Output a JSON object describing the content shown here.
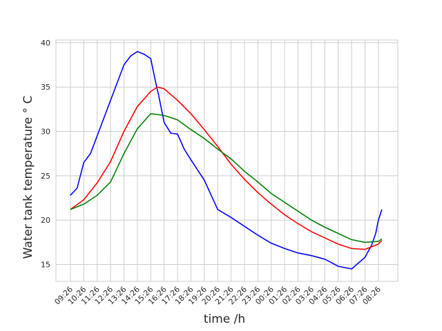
{
  "chart_data": {
    "type": "line",
    "xlabel": "time /h",
    "ylabel": "Water tank temperature  ° C",
    "xlim": [
      -1.08,
      24.45
    ],
    "ylim": [
      13.1,
      40.3
    ],
    "xticks": [
      {
        "value": 0,
        "label": "09:26"
      },
      {
        "value": 1,
        "label": "10:26"
      },
      {
        "value": 2,
        "label": "11:26"
      },
      {
        "value": 3,
        "label": "12:26"
      },
      {
        "value": 4,
        "label": "13:26"
      },
      {
        "value": 5,
        "label": "14:26"
      },
      {
        "value": 6,
        "label": "15:26"
      },
      {
        "value": 7,
        "label": "16:26"
      },
      {
        "value": 8,
        "label": "17:26"
      },
      {
        "value": 9,
        "label": "18:26"
      },
      {
        "value": 10,
        "label": "19:26"
      },
      {
        "value": 11,
        "label": "20:26"
      },
      {
        "value": 12,
        "label": "21:26"
      },
      {
        "value": 13,
        "label": "22:26"
      },
      {
        "value": 14,
        "label": "23:26"
      },
      {
        "value": 15,
        "label": "00:26"
      },
      {
        "value": 16,
        "label": "01:26"
      },
      {
        "value": 17,
        "label": "02:26"
      },
      {
        "value": 18,
        "label": "03:26"
      },
      {
        "value": 19,
        "label": "04:26"
      },
      {
        "value": 20,
        "label": "05:26"
      },
      {
        "value": 21,
        "label": "06:26"
      },
      {
        "value": 22,
        "label": "07:26"
      },
      {
        "value": 23,
        "label": "08:26"
      }
    ],
    "yticks": [
      15,
      20,
      25,
      30,
      35,
      40
    ],
    "grid": true,
    "series": [
      {
        "color": "#0000ff",
        "x": [
          0,
          0.5,
          1,
          1.5,
          2,
          3,
          4,
          4.5,
          5,
          5.5,
          6,
          6.3,
          6.6,
          7,
          7.5,
          8,
          8.5,
          9,
          10,
          11,
          12,
          13,
          14,
          15,
          16,
          17,
          18,
          19,
          20,
          21,
          22,
          22.5,
          22.8,
          23,
          23.26
        ],
        "values": [
          22.8,
          23.6,
          26.5,
          27.5,
          29.5,
          33.5,
          37.5,
          38.5,
          39.0,
          38.7,
          38.2,
          36,
          34,
          31,
          29.8,
          29.7,
          28,
          26.8,
          24.5,
          21.2,
          20.3,
          19.3,
          18.3,
          17.4,
          16.8,
          16.3,
          16.0,
          15.6,
          14.8,
          14.5,
          15.8,
          17.2,
          18.5,
          20,
          21.2
        ]
      },
      {
        "color": "#ff0000",
        "x": [
          0,
          1,
          2,
          3,
          4,
          5,
          6,
          6.5,
          7,
          8,
          9,
          10,
          11,
          12,
          13,
          14,
          15,
          16,
          17,
          18,
          19,
          20,
          21,
          22,
          23,
          23.26
        ],
        "values": [
          21.2,
          22.3,
          24.2,
          26.6,
          30,
          32.8,
          34.5,
          35,
          34.8,
          33.5,
          32,
          30.2,
          28.3,
          26.3,
          24.6,
          23.1,
          21.8,
          20.6,
          19.6,
          18.7,
          18.0,
          17.3,
          16.8,
          16.7,
          17.3,
          17.7
        ]
      },
      {
        "color": "#008000",
        "x": [
          0,
          1,
          2,
          3,
          4,
          5,
          6,
          7,
          8,
          9,
          10,
          11,
          12,
          13,
          14,
          15,
          16,
          17,
          18,
          19,
          20,
          21,
          22,
          23,
          23.26
        ],
        "values": [
          21.2,
          21.8,
          22.8,
          24.3,
          27.5,
          30.3,
          32.0,
          31.8,
          31.3,
          30.2,
          29.2,
          28.0,
          26.9,
          25.5,
          24.3,
          23.0,
          22.0,
          21.0,
          20.0,
          19.2,
          18.5,
          17.8,
          17.5,
          17.6,
          17.9
        ]
      }
    ]
  }
}
